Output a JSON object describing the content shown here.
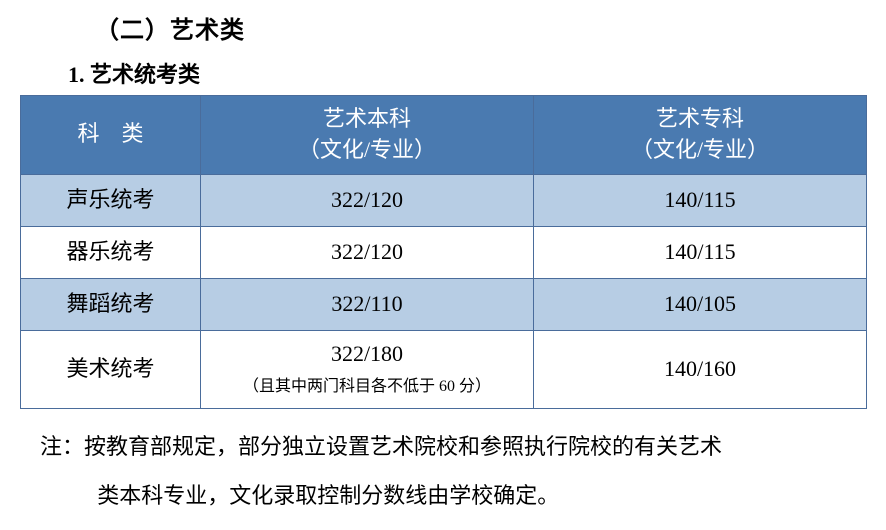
{
  "section_title": "（二）艺术类",
  "subsection_title": "1. 艺术统考类",
  "table": {
    "header_col1_line1": "科",
    "header_col1_line2": "类",
    "header_col2_line1": "艺术本科",
    "header_col2_line2": "（文化/专业）",
    "header_col3_line1": "艺术专科",
    "header_col3_line2": "（文化/专业）",
    "rows": [
      {
        "name": "声乐统考",
        "col2": "322/120",
        "col2_note": "",
        "col3": "140/115",
        "shaded": true
      },
      {
        "name": "器乐统考",
        "col2": "322/120",
        "col2_note": "",
        "col3": "140/115",
        "shaded": false
      },
      {
        "name": "舞蹈统考",
        "col2": "322/110",
        "col2_note": "",
        "col3": "140/105",
        "shaded": true
      },
      {
        "name": "美术统考",
        "col2": "322/180",
        "col2_note": "（且其中两门科目各不低于 60 分）",
        "col3": "140/160",
        "shaded": false
      }
    ]
  },
  "footnote_line1": "注：按教育部规定，部分独立设置艺术院校和参照执行院校的有关艺术",
  "footnote_line2": "类本科专业，文化录取控制分数线由学校确定。",
  "colors": {
    "header_bg": "#4a7ab0",
    "header_text": "#ffffff",
    "shade_bg": "#b7cde4",
    "border": "#4a6c9b",
    "text": "#000000",
    "background": "#ffffff"
  }
}
